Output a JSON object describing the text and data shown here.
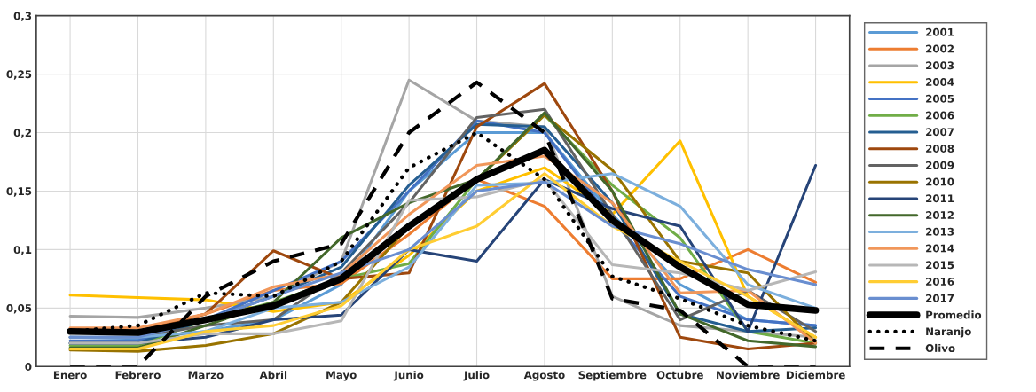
{
  "chart_data": {
    "type": "line",
    "categories": [
      "Enero",
      "Febrero",
      "Marzo",
      "Abril",
      "Mayo",
      "Junio",
      "Julio",
      "Agosto",
      "Septiembre",
      "Octubre",
      "Noviembre",
      "Diciembre"
    ],
    "ylim": [
      0,
      0.3
    ],
    "yticks": [
      {
        "value": 0,
        "label": "0"
      },
      {
        "value": 0.05,
        "label": "0,05"
      },
      {
        "value": 0.1,
        "label": "0,1"
      },
      {
        "value": 0.15,
        "label": "0,15"
      },
      {
        "value": 0.2,
        "label": "0,2"
      },
      {
        "value": 0.25,
        "label": "0,25"
      },
      {
        "value": 0.3,
        "label": "0,3"
      }
    ],
    "grid": true,
    "legend": "right",
    "marker": "none",
    "series": [
      {
        "name": "2001",
        "color": "#5b9bd5",
        "values": [
          0.025,
          0.024,
          0.03,
          0.04,
          0.07,
          0.15,
          0.2,
          0.2,
          0.13,
          0.07,
          0.04,
          0.035
        ]
      },
      {
        "name": "2002",
        "color": "#ed7d31",
        "values": [
          0.03,
          0.03,
          0.045,
          0.065,
          0.071,
          0.113,
          0.16,
          0.137,
          0.075,
          0.075,
          0.1,
          0.072
        ]
      },
      {
        "name": "2003",
        "color": "#a5a5a5",
        "values": [
          0.043,
          0.042,
          0.05,
          0.06,
          0.09,
          0.245,
          0.21,
          0.205,
          0.06,
          0.035,
          0.03,
          0.025
        ]
      },
      {
        "name": "2004",
        "color": "#ffc000",
        "values": [
          0.061,
          0.059,
          0.057,
          0.047,
          0.055,
          0.095,
          0.15,
          0.17,
          0.13,
          0.193,
          0.06,
          0.025
        ]
      },
      {
        "name": "2005",
        "color": "#4472c4",
        "values": [
          0.022,
          0.022,
          0.04,
          0.065,
          0.09,
          0.15,
          0.21,
          0.2,
          0.125,
          0.06,
          0.04,
          0.035
        ]
      },
      {
        "name": "2006",
        "color": "#70ad47",
        "values": [
          0.018,
          0.018,
          0.04,
          0.055,
          0.075,
          0.088,
          0.16,
          0.215,
          0.155,
          0.11,
          0.03,
          0.02
        ]
      },
      {
        "name": "2007",
        "color": "#255e91",
        "values": [
          0.02,
          0.02,
          0.04,
          0.06,
          0.085,
          0.155,
          0.207,
          0.205,
          0.14,
          0.045,
          0.03,
          0.033
        ]
      },
      {
        "name": "2008",
        "color": "#9e480e",
        "values": [
          0.03,
          0.03,
          0.045,
          0.099,
          0.075,
          0.08,
          0.205,
          0.242,
          0.15,
          0.025,
          0.015,
          0.02
        ]
      },
      {
        "name": "2009",
        "color": "#636363",
        "values": [
          0.025,
          0.025,
          0.035,
          0.04,
          0.08,
          0.14,
          0.213,
          0.22,
          0.13,
          0.04,
          0.065,
          0.03
        ]
      },
      {
        "name": "2010",
        "color": "#997300",
        "values": [
          0.014,
          0.013,
          0.018,
          0.028,
          0.055,
          0.12,
          0.16,
          0.215,
          0.168,
          0.09,
          0.08,
          0.02
        ]
      },
      {
        "name": "2011",
        "color": "#264478",
        "values": [
          0.02,
          0.02,
          0.025,
          0.04,
          0.044,
          0.1,
          0.09,
          0.16,
          0.135,
          0.12,
          0.03,
          0.172
        ]
      },
      {
        "name": "2012",
        "color": "#43682b",
        "values": [
          0.016,
          0.016,
          0.035,
          0.055,
          0.11,
          0.14,
          0.16,
          0.217,
          0.15,
          0.045,
          0.022,
          0.017
        ]
      },
      {
        "name": "2013",
        "color": "#7cafdd",
        "values": [
          0.025,
          0.025,
          0.03,
          0.05,
          0.055,
          0.085,
          0.155,
          0.157,
          0.165,
          0.137,
          0.07,
          0.05
        ]
      },
      {
        "name": "2014",
        "color": "#f1975a",
        "values": [
          0.033,
          0.033,
          0.045,
          0.068,
          0.079,
          0.13,
          0.172,
          0.18,
          0.14,
          0.063,
          0.065,
          0.02
        ]
      },
      {
        "name": "2015",
        "color": "#b7b7b7",
        "values": [
          0.02,
          0.02,
          0.028,
          0.028,
          0.039,
          0.142,
          0.145,
          0.16,
          0.087,
          0.08,
          0.065,
          0.081
        ]
      },
      {
        "name": "2016",
        "color": "#ffcd33",
        "values": [
          0.015,
          0.015,
          0.03,
          0.035,
          0.052,
          0.1,
          0.12,
          0.165,
          0.12,
          0.09,
          0.06,
          0.025
        ]
      },
      {
        "name": "2017",
        "color": "#698ed0",
        "values": [
          0.025,
          0.025,
          0.04,
          0.06,
          0.08,
          0.1,
          0.15,
          0.158,
          0.12,
          0.105,
          0.083,
          0.07
        ]
      },
      {
        "name": "Promedio",
        "color": "#000000",
        "line_style": "solid",
        "values": [
          0.03,
          0.029,
          0.04,
          0.052,
          0.075,
          0.12,
          0.16,
          0.185,
          0.125,
          0.085,
          0.053,
          0.048
        ]
      },
      {
        "name": "Naranjo",
        "color": "#000000",
        "line_style": "dotted",
        "values": [
          0.03,
          0.035,
          0.063,
          0.06,
          0.09,
          0.17,
          0.2,
          0.16,
          0.077,
          0.058,
          0.035,
          0.022
        ]
      },
      {
        "name": "Olivo",
        "color": "#000000",
        "line_style": "dashed",
        "values": [
          0,
          0,
          0.06,
          0.09,
          0.105,
          0.2,
          0.243,
          0.2,
          0.058,
          0.048,
          0,
          0
        ]
      }
    ]
  }
}
